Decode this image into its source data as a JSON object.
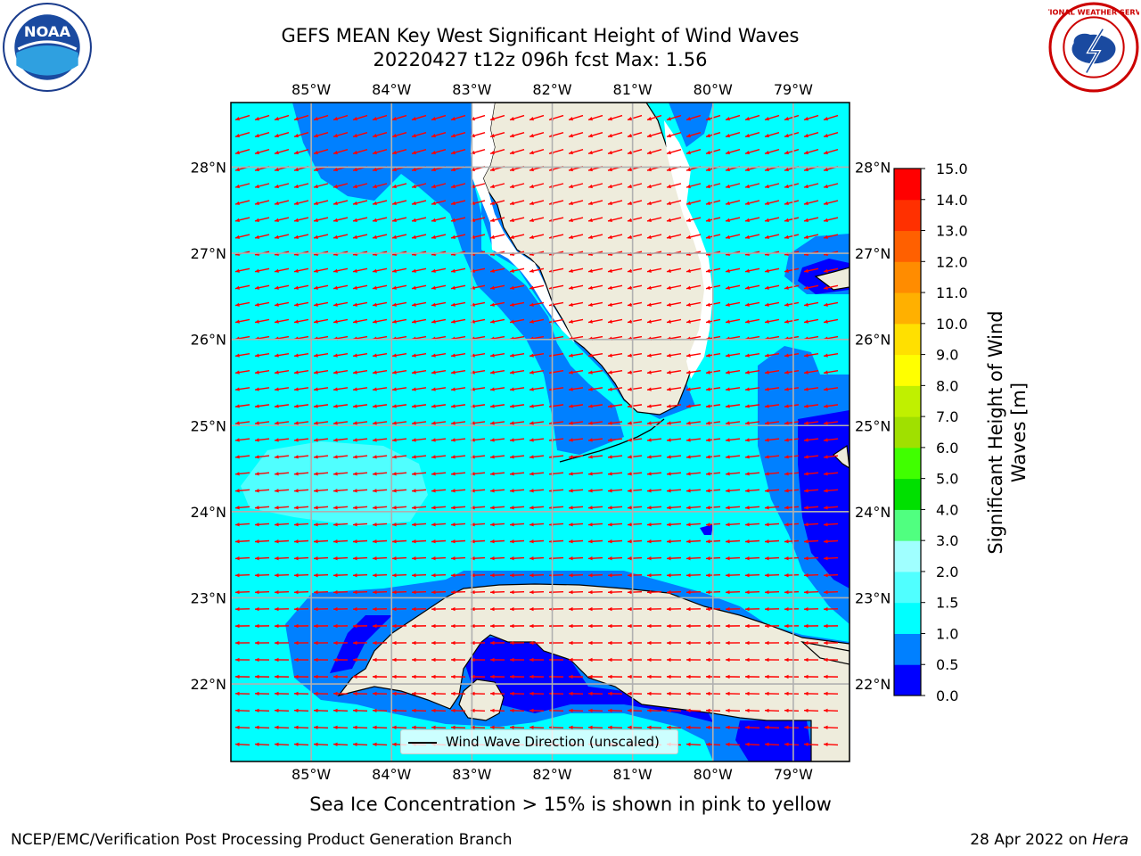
{
  "title": {
    "line1": "GEFS MEAN Key West Significant Height of Wind Waves",
    "line2": "20220427 t12z 096h fcst   Max: 1.56"
  },
  "map": {
    "lon_labels": [
      "85°W",
      "84°W",
      "83°W",
      "82°W",
      "81°W",
      "80°W",
      "79°W"
    ],
    "lat_labels": [
      "28°N",
      "27°N",
      "26°N",
      "25°N",
      "24°N",
      "23°N",
      "22°N"
    ],
    "lon_range": [
      -86.0,
      -78.3
    ],
    "lat_range": [
      21.1,
      28.75
    ],
    "land_color": "#eeecdc",
    "ocean_base_color": "#00ffff",
    "arrow_color": "#ff0000",
    "arrow_direction": "toward west-northwest in the north, toward west in the south"
  },
  "legend": {
    "label": "Wind Wave Direction (unscaled)"
  },
  "colorbar": {
    "label": "Significant Height of Wind Waves [m]",
    "ticks": [
      "0.0",
      "0.5",
      "1.0",
      "1.5",
      "2.0",
      "3.0",
      "4.0",
      "5.0",
      "6.0",
      "7.0",
      "8.0",
      "9.0",
      "10.0",
      "11.0",
      "12.0",
      "13.0",
      "14.0",
      "15.0"
    ],
    "colors": [
      "#0000ff",
      "#0080ff",
      "#00ffff",
      "#50ffff",
      "#a0ffff",
      "#50ff80",
      "#00e000",
      "#40ff00",
      "#a0e000",
      "#c0f000",
      "#ffff00",
      "#ffe000",
      "#ffb000",
      "#ff8c00",
      "#ff6000",
      "#ff3000",
      "#ff0000"
    ]
  },
  "icons": {
    "noaa_logo_text": "NOAA",
    "nws_logo_text": "NATIONAL WEATHER SERVICE"
  },
  "ice_note": "Sea Ice Concentration > 15% is shown in pink to yellow",
  "footer": {
    "left": "NCEP/EMC/Verification Post Processing Product Generation Branch",
    "date": "28 Apr 2022 on",
    "host": "Hera"
  }
}
